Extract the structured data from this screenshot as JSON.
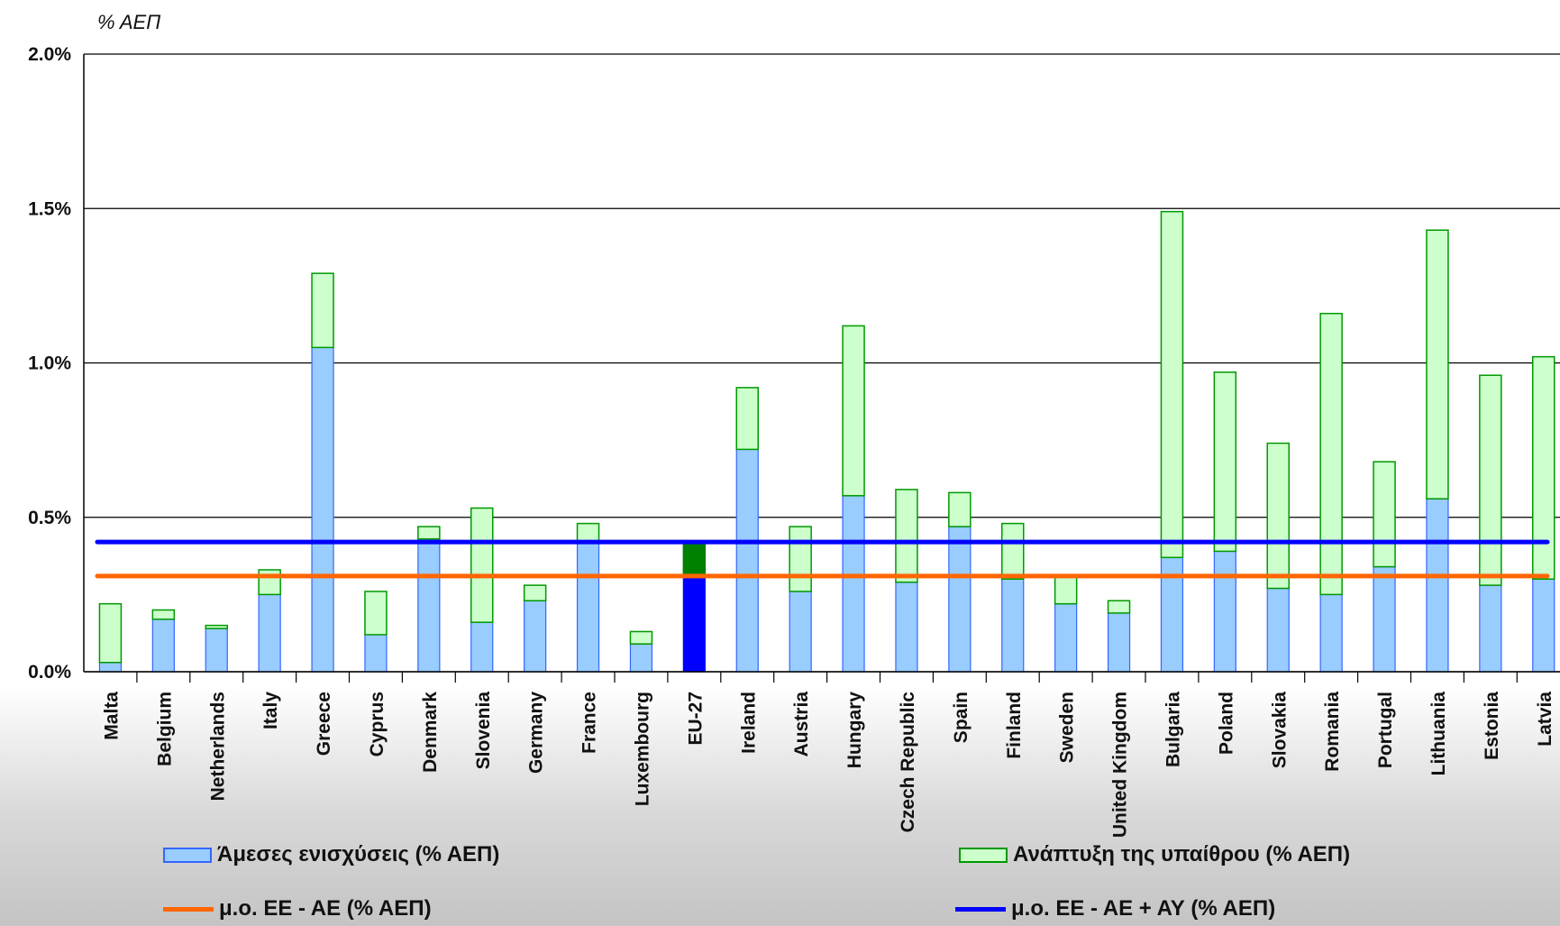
{
  "chart_data": {
    "type": "bar",
    "stacked": true,
    "ylabel": "% ΑΕΠ",
    "ylim": [
      0,
      2.0
    ],
    "y_ticks": [
      "0.0%",
      "0.5%",
      "1.0%",
      "1.5%",
      "2.0%"
    ],
    "grid": true,
    "categories": [
      "Malta",
      "Belgium",
      "Netherlands",
      "Italy",
      "Greece",
      "Cyprus",
      "Denmark",
      "Slovenia",
      "Germany",
      "France",
      "Luxembourg",
      "EU-27",
      "Ireland",
      "Austria",
      "Hungary",
      "Czech Republic",
      "Spain",
      "Finland",
      "Sweden",
      "United Kingdom",
      "Bulgaria",
      "Poland",
      "Slovakia",
      "Romania",
      "Portugal",
      "Lithuania",
      "Estonia",
      "Latvia"
    ],
    "highlight_category": "EU-27",
    "series": [
      {
        "name": "Άμεσες ενισχύσεις (% ΑΕΠ)",
        "color": "#99ccff",
        "border": "#3366ff",
        "highlight_color": "#0000ff",
        "values": [
          0.03,
          0.17,
          0.14,
          0.25,
          1.05,
          0.12,
          0.43,
          0.16,
          0.23,
          0.42,
          0.09,
          0.31,
          0.72,
          0.26,
          0.57,
          0.29,
          0.47,
          0.3,
          0.22,
          0.19,
          0.37,
          0.39,
          0.27,
          0.25,
          0.34,
          0.56,
          0.28,
          0.3
        ]
      },
      {
        "name": "Ανάπτυξη της υπαίθρου (% ΑΕΠ)",
        "color": "#ccffcc",
        "border": "#009900",
        "highlight_color": "#008000",
        "values": [
          0.19,
          0.03,
          0.01,
          0.08,
          0.24,
          0.14,
          0.04,
          0.37,
          0.05,
          0.06,
          0.04,
          0.11,
          0.2,
          0.21,
          0.55,
          0.3,
          0.11,
          0.18,
          0.09,
          0.04,
          1.12,
          0.58,
          0.47,
          0.91,
          0.34,
          0.87,
          0.68,
          0.72
        ]
      }
    ],
    "reference_lines": [
      {
        "name": "μ.ο. ΕΕ - ΑΕ (% ΑΕΠ)",
        "value": 0.31,
        "color": "#ff6600"
      },
      {
        "name": "μ.ο. ΕΕ - ΑΕ + ΑΥ (% ΑΕΠ)",
        "value": 0.42,
        "color": "#0000ff"
      }
    ]
  },
  "legend": {
    "direct": "Άμεσες ενισχύσεις (% ΑΕΠ)",
    "rural": "Ανάπτυξη της υπαίθρου (% ΑΕΠ)",
    "avg_ae": "μ.ο. ΕΕ - ΑΕ (% ΑΕΠ)",
    "avg_ae_ay": "μ.ο. ΕΕ - ΑΕ + ΑΥ (% ΑΕΠ)"
  },
  "colors": {
    "direct_fill": "#99ccff",
    "direct_border": "#3366ff",
    "rural_fill": "#ccffcc",
    "rural_border": "#009900",
    "orange": "#ff6600",
    "blue": "#0000ff"
  }
}
